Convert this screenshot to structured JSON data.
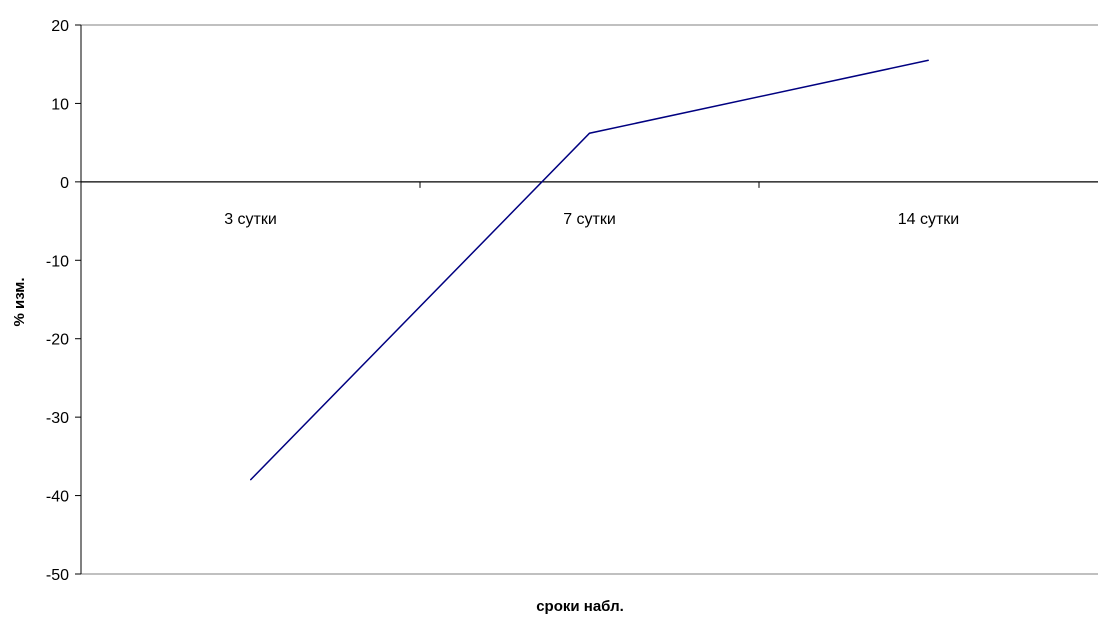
{
  "chart_data": {
    "type": "line",
    "title": "",
    "xlabel": "сроки набл.",
    "ylabel": "% изм.",
    "categories": [
      "3 сутки",
      "7 сутки",
      "14 сутки"
    ],
    "series": [
      {
        "values": [
          -38,
          6.2,
          15.5
        ],
        "color": "#000080"
      }
    ],
    "ylim": [
      -50,
      20
    ],
    "yticks": [
      20,
      10,
      0,
      -10,
      -20,
      -30,
      -40,
      -50
    ],
    "ytick_labels": [
      "20",
      "10",
      "0",
      "-10",
      "-20",
      "-30",
      "-40",
      "-50"
    ],
    "grid": false,
    "legend": "none"
  }
}
